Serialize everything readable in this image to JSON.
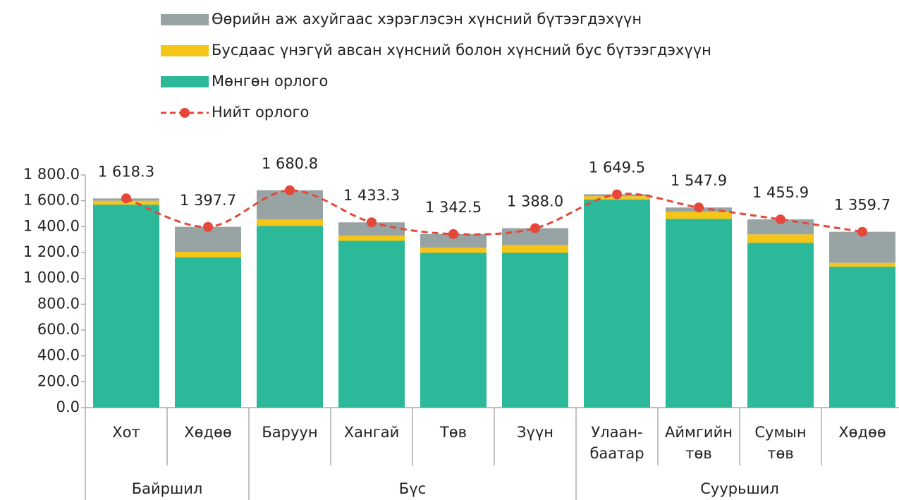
{
  "chart_data": {
    "type": "stacked-bar-line",
    "categories": [
      "Хот",
      "Хөдөө",
      "Баруун",
      "Хангай",
      "Төв",
      "Зүүн",
      "Улаан-\nбаатар",
      "Аймгийн\nтөв",
      "Сумын\nтөв",
      "Хөдөө"
    ],
    "groups": [
      "Байршил",
      "Байршил",
      "Бүс",
      "Бүс",
      "Бүс",
      "Бүс",
      "Суурьшил",
      "Суурьшил",
      "Суурьшил",
      "Суурьшил"
    ],
    "series": [
      {
        "name": "Мөнгөн орлого",
        "color": "#2bb99a",
        "values": [
          1570,
          1162,
          1405,
          1290,
          1197,
          1197,
          1610,
          1460,
          1275,
          1090
        ]
      },
      {
        "name": "Бусдаас үнэгүй авсан хүнсний болон хүнсний бус бүтээгдэхүүн",
        "color": "#f5c518",
        "values": [
          30,
          43,
          50,
          40,
          40,
          60,
          25,
          55,
          65,
          30
        ]
      },
      {
        "name": "Өөрийн аж ахуйгаас хэрэглэсэн хүнсний бүтээгдэхүүн",
        "color": "#98a3a3",
        "values": [
          18,
          193,
          226,
          103,
          105,
          131,
          15,
          33,
          116,
          240
        ]
      },
      {
        "name": "Нийт орлого",
        "color": "#e5483a",
        "kind": "line",
        "values": [
          1618.3,
          1397.7,
          1680.8,
          1433.3,
          1342.5,
          1388.0,
          1649.5,
          1547.9,
          1455.9,
          1359.7
        ],
        "value_labels": [
          "1 618.3",
          "1 397.7",
          "1 680.8",
          "1 433.3",
          "1 342.5",
          "1 388.0",
          "1 649.5",
          "1 547.9",
          "1 455.9",
          "1 359.7"
        ]
      }
    ],
    "ylim": [
      0,
      1800
    ],
    "yticks": [
      {
        "value": 0,
        "label": "0.0"
      },
      {
        "value": 200,
        "label": "200.0"
      },
      {
        "value": 400,
        "label": "400.0"
      },
      {
        "value": 600,
        "label": "600.0"
      },
      {
        "value": 800,
        "label": "800.0"
      },
      {
        "value": 1000,
        "label": "1 000.0"
      },
      {
        "value": 1200,
        "label": "1 200.0"
      },
      {
        "value": 1400,
        "label": "1 400.0"
      },
      {
        "value": 1600,
        "label": "1 600.0"
      },
      {
        "value": 1800,
        "label": "1 800.0"
      }
    ]
  }
}
